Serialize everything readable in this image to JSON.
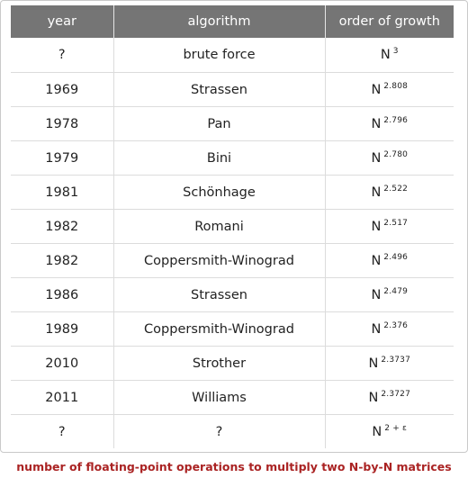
{
  "columns": [
    "year",
    "algorithm",
    "order of growth"
  ],
  "rows": [
    {
      "year": "?",
      "algorithm": "brute force",
      "base": "N",
      "exponent": "3"
    },
    {
      "year": "1969",
      "algorithm": "Strassen",
      "base": "N",
      "exponent": "2.808"
    },
    {
      "year": "1978",
      "algorithm": "Pan",
      "base": "N",
      "exponent": "2.796"
    },
    {
      "year": "1979",
      "algorithm": "Bini",
      "base": "N",
      "exponent": "2.780"
    },
    {
      "year": "1981",
      "algorithm": "Schönhage",
      "base": "N",
      "exponent": "2.522"
    },
    {
      "year": "1982",
      "algorithm": "Romani",
      "base": "N",
      "exponent": "2.517"
    },
    {
      "year": "1982",
      "algorithm": "Coppersmith-Winograd",
      "base": "N",
      "exponent": "2.496"
    },
    {
      "year": "1986",
      "algorithm": "Strassen",
      "base": "N",
      "exponent": "2.479"
    },
    {
      "year": "1989",
      "algorithm": "Coppersmith-Winograd",
      "base": "N",
      "exponent": "2.376"
    },
    {
      "year": "2010",
      "algorithm": "Strother",
      "base": "N",
      "exponent": "2.3737"
    },
    {
      "year": "2011",
      "algorithm": "Williams",
      "base": "N",
      "exponent": "2.3727"
    },
    {
      "year": "?",
      "algorithm": "?",
      "base": "N",
      "exponent": "2 + ε"
    }
  ],
  "caption": "number of floating-point operations to multiply two N-by-N matrices",
  "colors": {
    "header_bg": "#757575",
    "header_text": "#ffffff",
    "caption": "#aa2323",
    "grid": "#dcdcdc"
  }
}
